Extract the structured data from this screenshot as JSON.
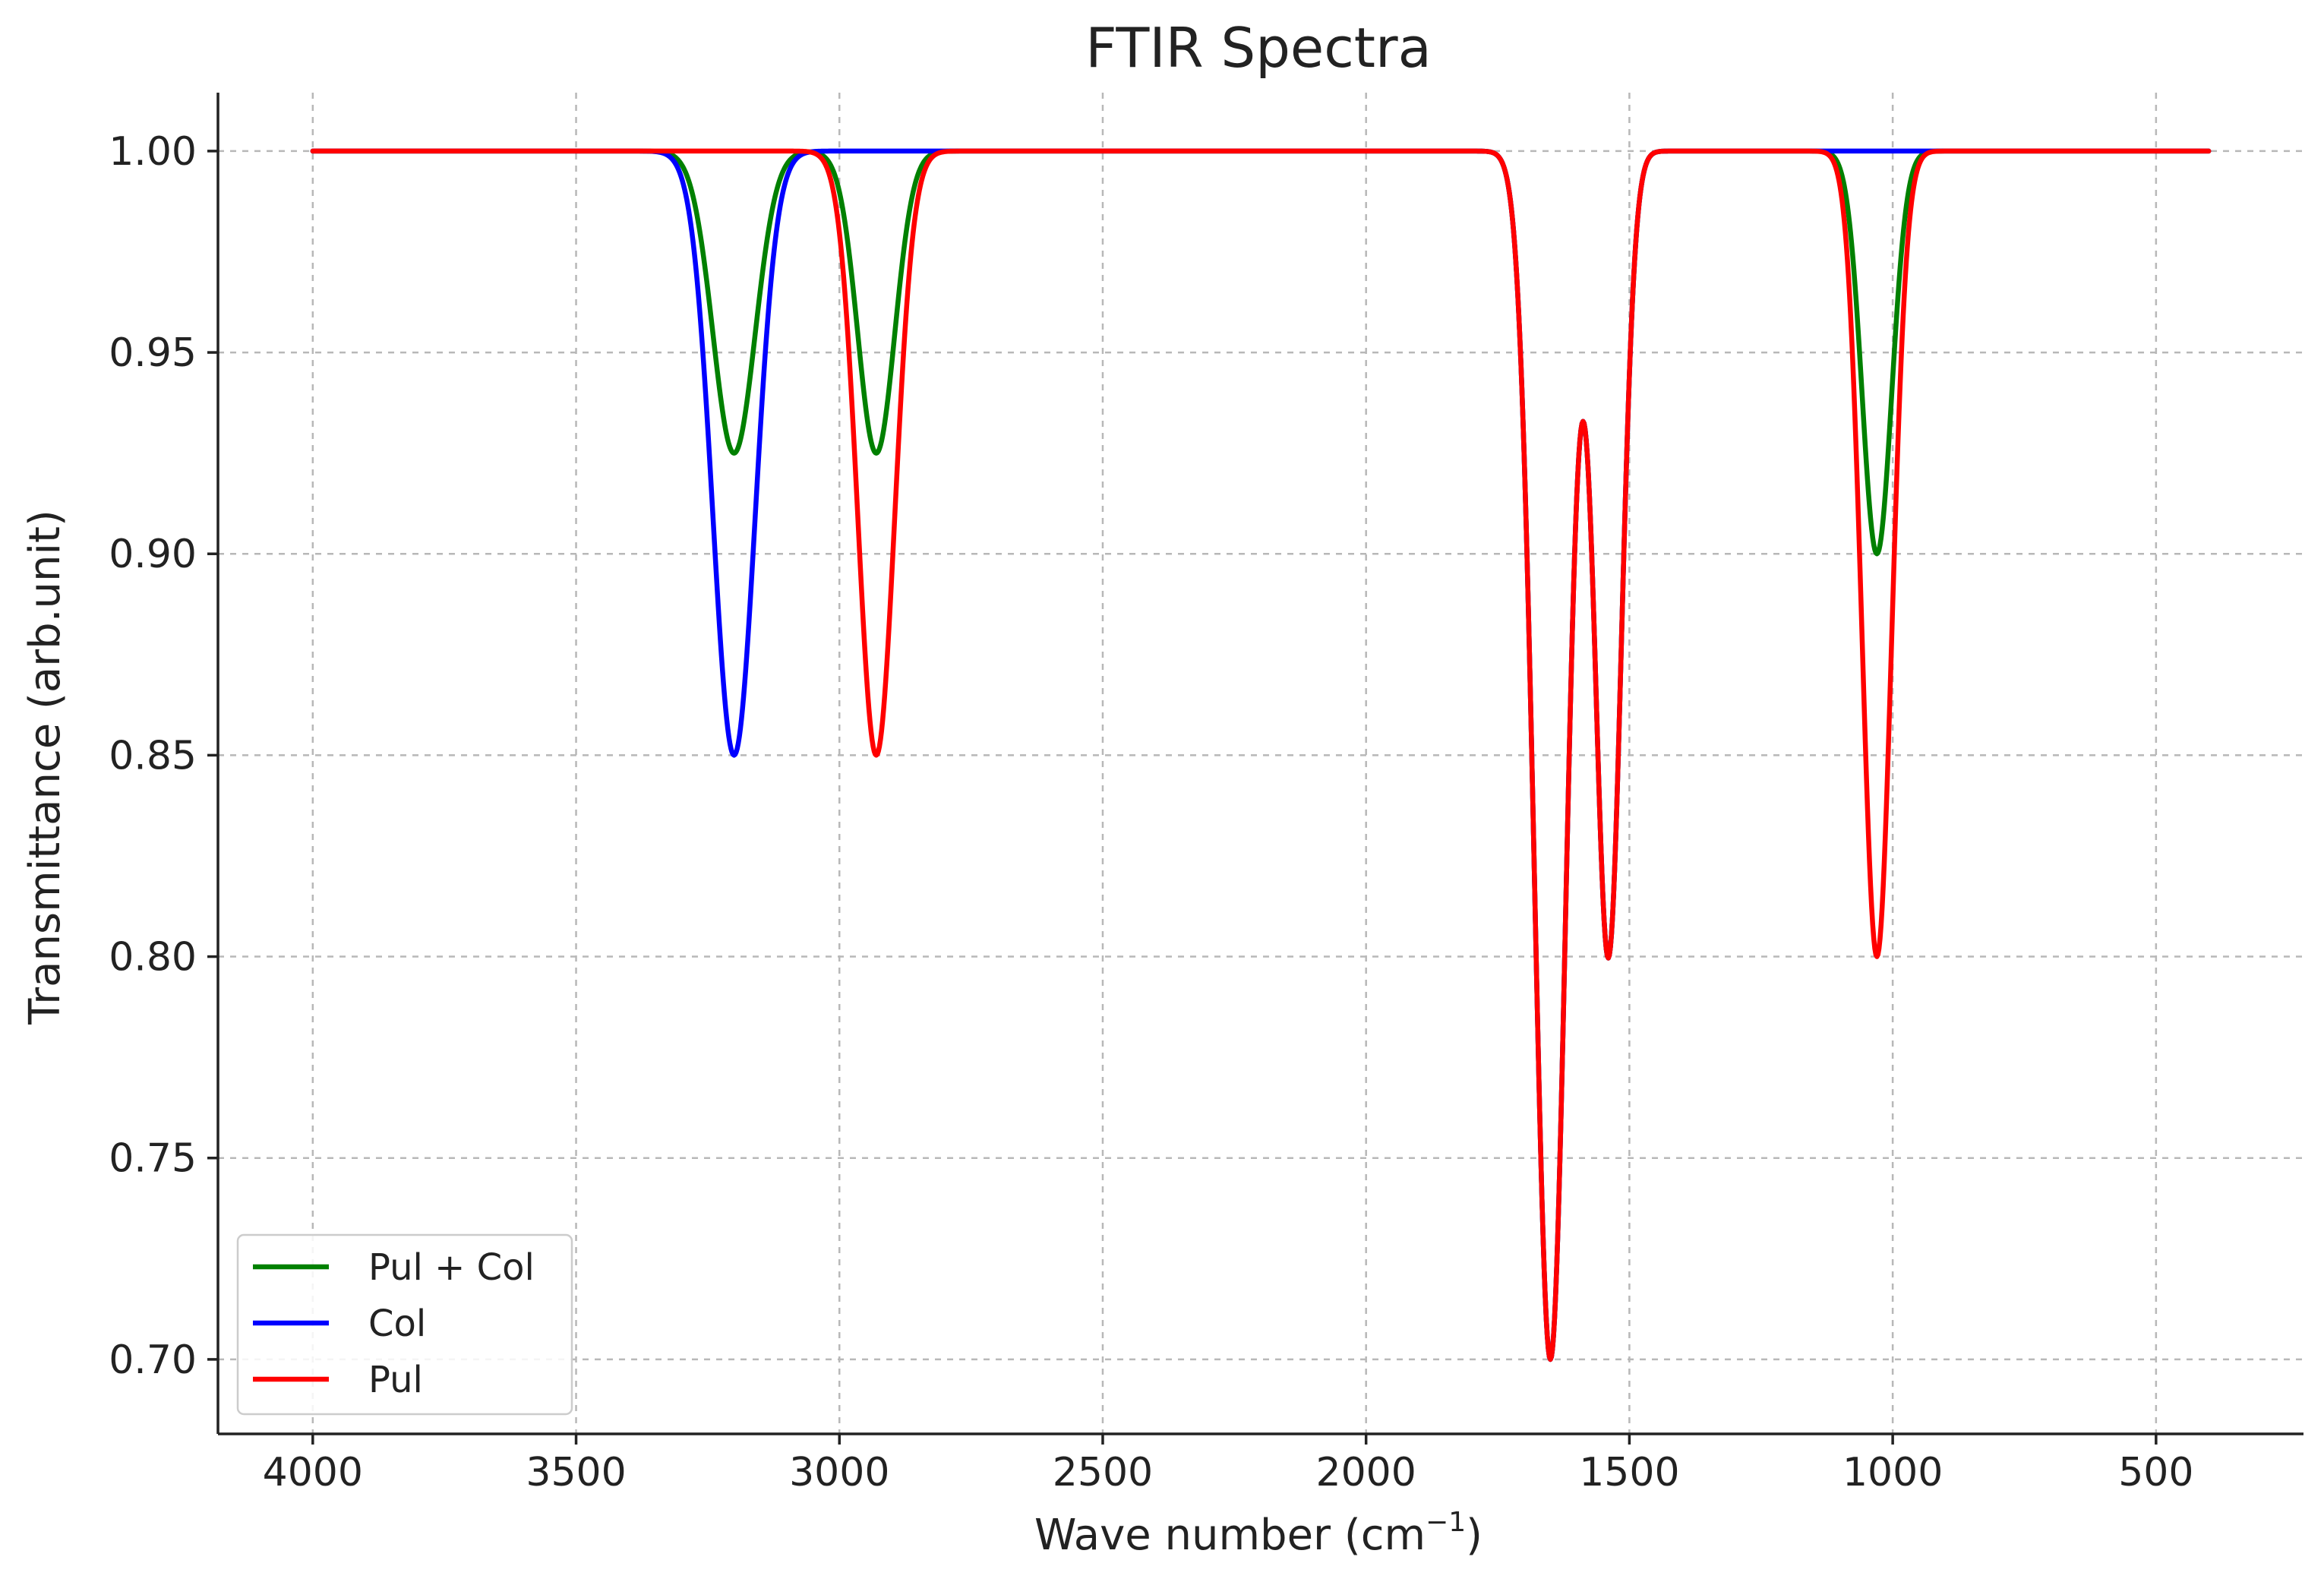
{
  "chart_data": {
    "type": "line",
    "title": "FTIR Spectra",
    "xlabel": "Wave number (cm",
    "xlabel_sup": "−1",
    "xlabel_end": ")",
    "ylabel": "Transmittance (arb.unit)",
    "x_reversed": true,
    "xlim": [
      4180,
      220
    ],
    "ylim": [
      0.6815,
      1.0145
    ],
    "x_range": [
      4000,
      400
    ],
    "grid": true,
    "legend_position": "lower-left",
    "x_ticks": [
      4000,
      3500,
      3000,
      2500,
      2000,
      1500,
      1000,
      500
    ],
    "x_tick_labels": [
      "4000",
      "3500",
      "3000",
      "2500",
      "2000",
      "1500",
      "1000",
      "500"
    ],
    "y_ticks": [
      0.7,
      0.75,
      0.8,
      0.85,
      0.9,
      0.95,
      1.0
    ],
    "y_tick_labels": [
      "0.70",
      "0.75",
      "0.80",
      "0.85",
      "0.90",
      "0.95",
      "1.00"
    ],
    "series": [
      {
        "name": "Pul + Col",
        "color": "#008000",
        "baseline": 1.0,
        "peaks": [
          {
            "center": 3200,
            "depth": 0.075,
            "sigma": 40
          },
          {
            "center": 2930,
            "depth": 0.075,
            "sigma": 35
          },
          {
            "center": 1650,
            "depth": 0.3,
            "sigma": 30
          },
          {
            "center": 1540,
            "depth": 0.2,
            "sigma": 25
          },
          {
            "center": 1030,
            "depth": 0.1,
            "sigma": 28
          }
        ]
      },
      {
        "name": "Col",
        "color": "#0000ff",
        "baseline": 1.0,
        "peaks": [
          {
            "center": 3200,
            "depth": 0.15,
            "sigma": 40
          },
          {
            "center": 1650,
            "depth": 0.3,
            "sigma": 30
          },
          {
            "center": 1540,
            "depth": 0.2,
            "sigma": 25
          }
        ]
      },
      {
        "name": "Pul",
        "color": "#ff0000",
        "baseline": 1.0,
        "peaks": [
          {
            "center": 2930,
            "depth": 0.15,
            "sigma": 35
          },
          {
            "center": 1650,
            "depth": 0.3,
            "sigma": 30
          },
          {
            "center": 1540,
            "depth": 0.2,
            "sigma": 25
          },
          {
            "center": 1030,
            "depth": 0.2,
            "sigma": 28
          }
        ]
      }
    ]
  }
}
